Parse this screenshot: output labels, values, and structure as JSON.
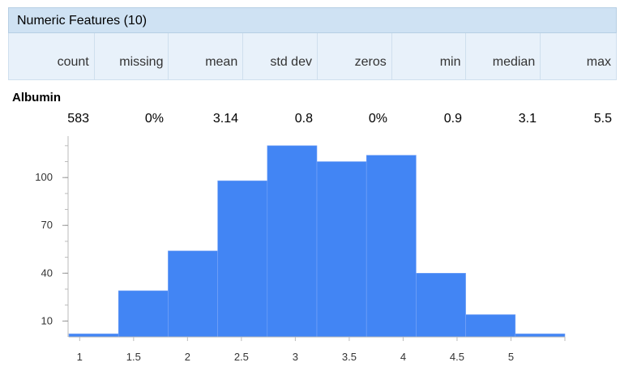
{
  "panel": {
    "title": "Numeric Features (10)"
  },
  "columns": [
    "count",
    "missing",
    "mean",
    "std dev",
    "zeros",
    "min",
    "median",
    "max"
  ],
  "feature": {
    "name": "Albumin",
    "stats": [
      "583",
      "0%",
      "3.14",
      "0.8",
      "0%",
      "0.9",
      "3.1",
      "5.5"
    ]
  },
  "chart_data": {
    "type": "bar",
    "title": "",
    "xlabel": "",
    "ylabel": "",
    "bar_color": "#4285f4",
    "bins": [
      {
        "x0": 0.9,
        "x1": 1.36,
        "value": 2
      },
      {
        "x0": 1.36,
        "x1": 1.82,
        "value": 29
      },
      {
        "x0": 1.82,
        "x1": 2.28,
        "value": 54
      },
      {
        "x0": 2.28,
        "x1": 2.74,
        "value": 98
      },
      {
        "x0": 2.74,
        "x1": 3.2,
        "value": 120
      },
      {
        "x0": 3.2,
        "x1": 3.66,
        "value": 110
      },
      {
        "x0": 3.66,
        "x1": 4.12,
        "value": 114
      },
      {
        "x0": 4.12,
        "x1": 4.58,
        "value": 40
      },
      {
        "x0": 4.58,
        "x1": 5.04,
        "value": 14
      },
      {
        "x0": 5.04,
        "x1": 5.5,
        "value": 2
      }
    ],
    "x_ticks": [
      "1",
      "1.5",
      "2",
      "2.5",
      "3",
      "3.5",
      "4",
      "4.5",
      "5"
    ],
    "x_tick_values": [
      1,
      1.5,
      2,
      2.5,
      3,
      3.5,
      4,
      4.5,
      5
    ],
    "y_ticks": [
      "10",
      "40",
      "70",
      "100"
    ],
    "y_tick_values": [
      10,
      40,
      70,
      100
    ],
    "xlim": [
      0.9,
      5.5
    ],
    "ylim": [
      0,
      125
    ]
  }
}
